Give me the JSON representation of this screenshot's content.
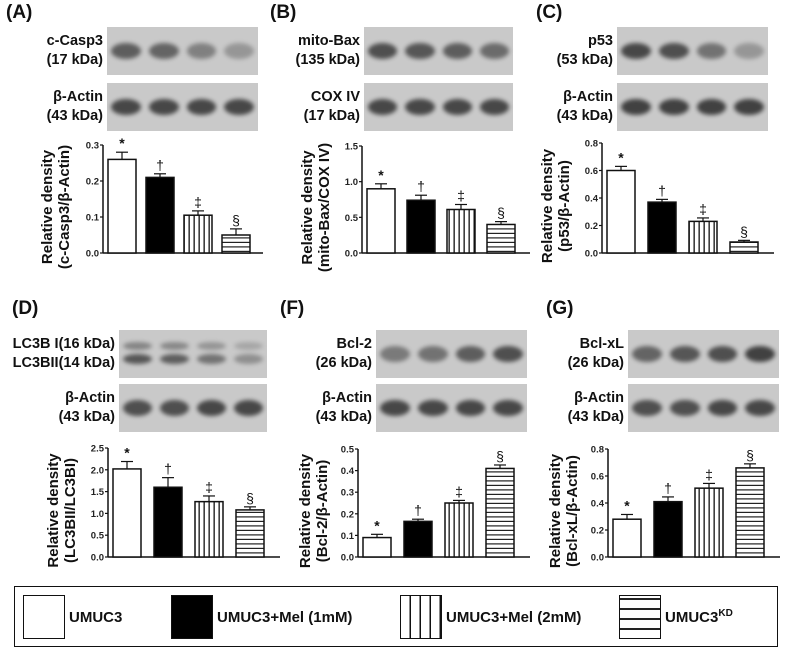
{
  "figure": {
    "panels": [
      {
        "id": "A",
        "label": "(A)",
        "blot1": {
          "name": "c-Casp3",
          "kda": "(17 kDa)"
        },
        "blot2": {
          "name": "β-Actin",
          "kda": "(43 kDa)"
        },
        "ylabel1": "Relative density",
        "ylabel2": "(c-Casp3/β-Actin)"
      },
      {
        "id": "B",
        "label": "(B)",
        "blot1": {
          "name": "mito-Bax",
          "kda": "(135 kDa)"
        },
        "blot2": {
          "name": "COX IV",
          "kda": "(17 kDa)"
        },
        "ylabel1": "Relative density",
        "ylabel2": "(mito-Bax/COX IV)"
      },
      {
        "id": "C",
        "label": "(C)",
        "blot1": {
          "name": "p53",
          "kda": "(53 kDa)"
        },
        "blot2": {
          "name": "β-Actin",
          "kda": "(43 kDa)"
        },
        "ylabel1": "Relative density",
        "ylabel2": "(p53/β-Actin)"
      },
      {
        "id": "D",
        "label": "(D)",
        "blot1": {
          "name": "LC3B I(16 kDa)",
          "kda": "LC3BII(14 kDa)"
        },
        "blot2": {
          "name": "β-Actin",
          "kda": "(43 kDa)"
        },
        "ylabel1": "Relative density",
        "ylabel2": "(LC3BII/LC3BI)"
      },
      {
        "id": "F",
        "label": "(F)",
        "blot1": {
          "name": "Bcl-2",
          "kda": "(26 kDa)"
        },
        "blot2": {
          "name": "β-Actin",
          "kda": "(43 kDa)"
        },
        "ylabel1": "Relative density",
        "ylabel2": "(Bcl-2/β-Actin)"
      },
      {
        "id": "G",
        "label": "(G)",
        "blot1": {
          "name": "Bcl-xL",
          "kda": "(26 kDa)"
        },
        "blot2": {
          "name": "β-Actin",
          "kda": "(43 kDa)"
        },
        "ylabel1": "Relative density",
        "ylabel2": "(Bcl-xL/β-Actin)"
      }
    ],
    "legend": {
      "items": [
        {
          "label": "UMUC3",
          "pattern": "white"
        },
        {
          "label": "UMUC3+Mel (1mM)",
          "pattern": "black"
        },
        {
          "label": "UMUC3+Mel (2mM)",
          "pattern": "vertical-stripes"
        },
        {
          "label": "UMUC3",
          "sup": "KD",
          "pattern": "horizontal-stripes"
        }
      ]
    }
  },
  "chart_data": [
    {
      "type": "bar",
      "panel": "A",
      "title": "",
      "ylabel": "Relative density (c-Casp3/β-Actin)",
      "categories": [
        "UMUC3",
        "UMUC3+Mel (1mM)",
        "UMUC3+Mel (2mM)",
        "UMUC3KD"
      ],
      "values": [
        0.26,
        0.21,
        0.105,
        0.05
      ],
      "errors": [
        0.02,
        0.01,
        0.012,
        0.017
      ],
      "significance": [
        "*",
        "†",
        "‡",
        "§"
      ],
      "ylim": [
        0,
        0.3
      ],
      "yticks": [
        "0.0",
        "0.1",
        "0.2",
        "0.3"
      ]
    },
    {
      "type": "bar",
      "panel": "B",
      "title": "",
      "ylabel": "Relative density (mito-Bax/COX IV)",
      "categories": [
        "UMUC3",
        "UMUC3+Mel (1mM)",
        "UMUC3+Mel (2mM)",
        "UMUC3KD"
      ],
      "values": [
        0.9,
        0.74,
        0.61,
        0.4
      ],
      "errors": [
        0.07,
        0.07,
        0.07,
        0.04
      ],
      "significance": [
        "*",
        "†",
        "‡",
        "§"
      ],
      "ylim": [
        0,
        1.5
      ],
      "yticks": [
        "0.0",
        "0.5",
        "1.0",
        "1.5"
      ]
    },
    {
      "type": "bar",
      "panel": "C",
      "title": "",
      "ylabel": "Relative density (p53/β-Actin)",
      "categories": [
        "UMUC3",
        "UMUC3+Mel (1mM)",
        "UMUC3+Mel (2mM)",
        "UMUC3KD"
      ],
      "values": [
        0.6,
        0.37,
        0.23,
        0.08
      ],
      "errors": [
        0.03,
        0.02,
        0.025,
        0.012
      ],
      "significance": [
        "*",
        "†",
        "‡",
        "§"
      ],
      "ylim": [
        0,
        0.8
      ],
      "yticks": [
        "0.0",
        "0.2",
        "0.4",
        "0.6",
        "0.8"
      ]
    },
    {
      "type": "bar",
      "panel": "D",
      "title": "",
      "ylabel": "Relative density (LC3BII/LC3BI)",
      "categories": [
        "UMUC3",
        "UMUC3+Mel (1mM)",
        "UMUC3+Mel (2mM)",
        "UMUC3KD"
      ],
      "values": [
        2.02,
        1.6,
        1.27,
        1.08
      ],
      "errors": [
        0.17,
        0.22,
        0.13,
        0.07
      ],
      "significance": [
        "*",
        "†",
        "‡",
        "§"
      ],
      "ylim": [
        0,
        2.5
      ],
      "yticks": [
        "0.0",
        "0.5",
        "1.0",
        "1.5",
        "2.0",
        "2.5"
      ]
    },
    {
      "type": "bar",
      "panel": "F",
      "title": "",
      "ylabel": "Relative density (Bcl-2/β-Actin)",
      "categories": [
        "UMUC3",
        "UMUC3+Mel (1mM)",
        "UMUC3+Mel (2mM)",
        "UMUC3KD"
      ],
      "values": [
        0.09,
        0.165,
        0.25,
        0.41
      ],
      "errors": [
        0.015,
        0.01,
        0.012,
        0.016
      ],
      "significance": [
        "*",
        "†",
        "‡",
        "§"
      ],
      "ylim": [
        0,
        0.5
      ],
      "yticks": [
        "0.0",
        "0.1",
        "0.2",
        "0.3",
        "0.4",
        "0.5"
      ]
    },
    {
      "type": "bar",
      "panel": "G",
      "title": "",
      "ylabel": "Relative density (Bcl-xL/β-Actin)",
      "categories": [
        "UMUC3",
        "UMUC3+Mel (1mM)",
        "UMUC3+Mel (2mM)",
        "UMUC3KD"
      ],
      "values": [
        0.28,
        0.41,
        0.51,
        0.66
      ],
      "errors": [
        0.035,
        0.035,
        0.035,
        0.03
      ],
      "significance": [
        "*",
        "†",
        "‡",
        "§"
      ],
      "ylim": [
        0,
        0.8
      ],
      "yticks": [
        "0.0",
        "0.2",
        "0.4",
        "0.6",
        "0.8"
      ]
    }
  ]
}
